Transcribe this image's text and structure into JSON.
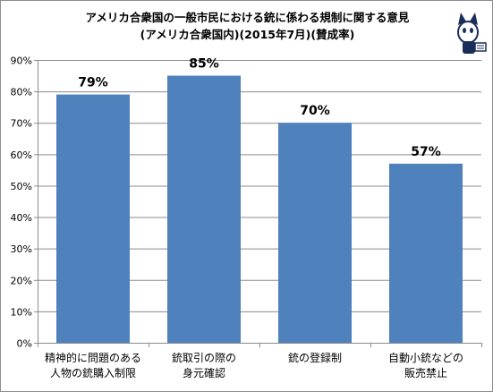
{
  "chart_data": {
    "type": "bar",
    "title": "アメリカ合衆国の一般市民における銃に係わる規制に関する意見",
    "subtitle": "(アメリカ合衆国内)(2015年7月)(賛成率)",
    "categories": [
      [
        "精神的に問題のある",
        "人物の銃購入制限"
      ],
      [
        "銃取引の際の",
        "身元確認"
      ],
      [
        "銃の登録制"
      ],
      [
        "自動小銃などの",
        "販売禁止"
      ]
    ],
    "values": [
      79,
      85,
      70,
      57
    ],
    "data_labels": [
      "79%",
      "85%",
      "70%",
      "57%"
    ],
    "ylim": [
      0,
      90
    ],
    "yticks": [
      0,
      10,
      20,
      30,
      40,
      50,
      60,
      70,
      80,
      90
    ],
    "ytick_labels": [
      "0%",
      "10%",
      "20%",
      "30%",
      "40%",
      "50%",
      "60%",
      "70%",
      "80%",
      "90%"
    ],
    "grid": true,
    "legend": "none",
    "bar_color": "#4f81bd",
    "grid_color": "#8c8c8c"
  }
}
